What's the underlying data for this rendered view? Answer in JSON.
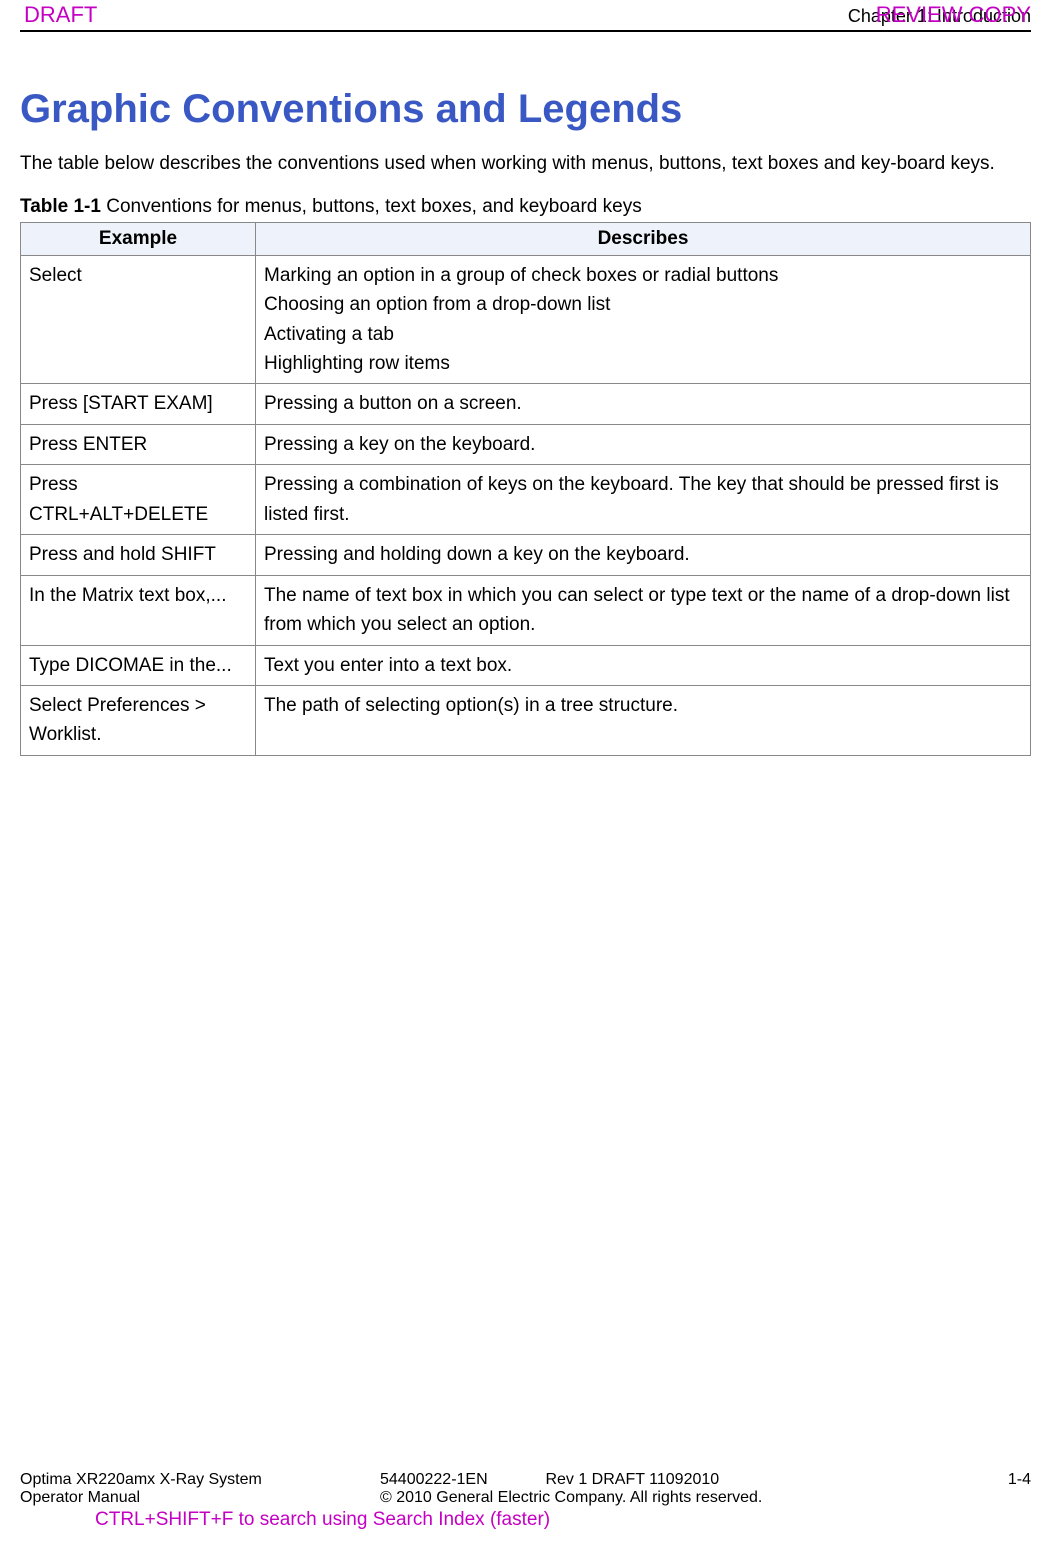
{
  "header": {
    "draft": "DRAFT",
    "chapter": "Chapter 1: Introduction",
    "review_copy": "REVIEW COPY"
  },
  "title": "Graphic Conventions and Legends",
  "intro": "The table below describes the conventions used when working with menus, buttons, text boxes and key-board keys.",
  "table": {
    "caption_bold": "Table 1-1",
    "caption_rest": "  Conventions for menus, buttons, text boxes, and keyboard keys",
    "columns": [
      "Example",
      "Describes"
    ],
    "rows": [
      {
        "example": "Select",
        "describes": "Marking an option in a group of check boxes or radial buttons\nChoosing an option from a drop-down list\nActivating a tab\nHighlighting row items"
      },
      {
        "example": "Press [START EXAM]",
        "describes": "Pressing a button on a screen."
      },
      {
        "example": "Press ENTER",
        "describes": "Pressing a key on the keyboard."
      },
      {
        "example": "Press CTRL+ALT+DELETE",
        "describes": "Pressing a combination of keys on the keyboard. The key that should be pressed first is listed first."
      },
      {
        "example": "Press and hold SHIFT",
        "describes": "Pressing and holding down a key on the keyboard."
      },
      {
        "example": "In the Matrix text box,...",
        "describes": "The name of text box in which you can select or type text or the name of a drop-down list from which you select an option."
      },
      {
        "example": "Type DICOMAE in the...",
        "describes": "Text you enter into a text box."
      },
      {
        "example": "Select Preferences > Worklist.",
        "describes": "The path of selecting option(s) in a tree structure."
      }
    ]
  },
  "footer": {
    "system": "Optima XR220amx X-Ray System",
    "manual": "Operator Manual",
    "docnum": "54400222-1EN",
    "rev": "Rev 1 DRAFT 11092010",
    "copyright": "© 2010 General Electric Company. All rights reserved.",
    "page": "1-4",
    "search_hint": "CTRL+SHIFT+F to search using Search Index (faster)"
  }
}
